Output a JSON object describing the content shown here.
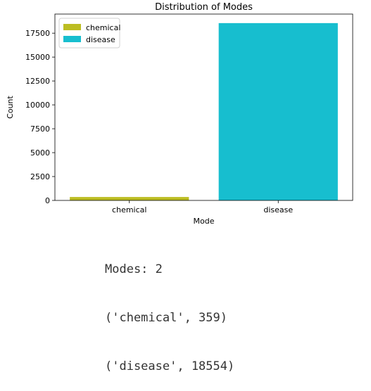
{
  "chart_data": {
    "type": "bar",
    "title": "Distribution of Modes",
    "xlabel": "Mode",
    "ylabel": "Count",
    "categories": [
      "chemical",
      "disease"
    ],
    "values": [
      359,
      18554
    ],
    "colors": [
      "#bcbd22",
      "#17becf"
    ],
    "ylim": [
      0,
      19500
    ],
    "yticks": [
      0,
      2500,
      5000,
      7500,
      10000,
      12500,
      15000,
      17500
    ],
    "legend": {
      "position": "top-left",
      "entries": [
        "chemical",
        "disease"
      ]
    },
    "grid": false
  },
  "output": {
    "lines": [
      "Modes: 2",
      "('chemical', 359)",
      "('disease', 18554)"
    ]
  }
}
